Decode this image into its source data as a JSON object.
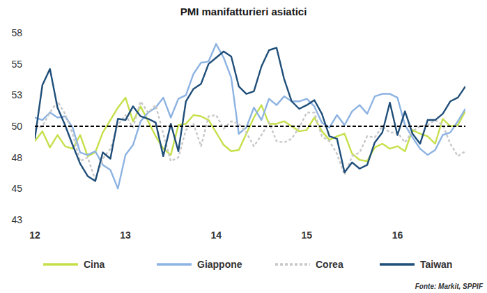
{
  "chart_data": {
    "type": "line",
    "title": "PMI manifatturieri asiatici",
    "source": "Fonte: Markit, SPPIF",
    "categories": [
      "12",
      null,
      null,
      null,
      null,
      null,
      null,
      null,
      null,
      null,
      null,
      null,
      "13",
      null,
      null,
      null,
      null,
      null,
      null,
      null,
      null,
      null,
      null,
      null,
      "14",
      null,
      null,
      null,
      null,
      null,
      null,
      null,
      null,
      null,
      null,
      null,
      "15",
      null,
      null,
      null,
      null,
      null,
      null,
      null,
      null,
      null,
      null,
      null,
      "16",
      null,
      null,
      null,
      null,
      null,
      null,
      null,
      null,
      null
    ],
    "ylim": [
      42.5,
      57.5
    ],
    "yticks": [
      {
        "value": 42.5,
        "label": "43"
      },
      {
        "value": 45,
        "label": "45"
      },
      {
        "value": 47.5,
        "label": "48"
      },
      {
        "value": 50,
        "label": "50"
      },
      {
        "value": 52.5,
        "label": "53"
      },
      {
        "value": 55,
        "label": "55"
      },
      {
        "value": 57.5,
        "label": "58"
      }
    ],
    "reference_line": 50,
    "grid": false,
    "legend": "bottom",
    "series": [
      {
        "name": "Cina",
        "color": "#c5e04b",
        "line_style": "solid",
        "values": [
          48.8,
          49.6,
          48.3,
          49.3,
          48.4,
          48.2,
          49.3,
          47.6,
          47.9,
          49.5,
          50.5,
          51.5,
          52.3,
          50.4,
          51.6,
          50.4,
          49.2,
          48.2,
          47.7,
          50.1,
          50.2,
          50.9,
          50.8,
          50.5,
          49.5,
          48.5,
          48.0,
          48.1,
          49.4,
          50.7,
          51.7,
          50.2,
          50.2,
          50.4,
          50.0,
          49.6,
          49.7,
          50.7,
          49.6,
          48.9,
          49.2,
          49.4,
          47.8,
          47.3,
          47.2,
          48.3,
          48.6,
          48.2,
          48.4,
          48.0,
          49.7,
          49.4,
          49.2,
          48.6,
          50.6,
          50.0,
          50.1,
          51.2
        ]
      },
      {
        "name": "Giappone",
        "color": "#8db3e2",
        "line_style": "solid",
        "values": [
          50.7,
          50.5,
          51.1,
          50.7,
          50.8,
          49.9,
          47.9,
          47.7,
          48.0,
          46.9,
          46.5,
          45.0,
          47.7,
          48.5,
          50.4,
          51.1,
          51.5,
          52.3,
          50.7,
          52.2,
          52.5,
          54.2,
          55.1,
          55.2,
          56.6,
          55.5,
          53.9,
          49.4,
          49.9,
          51.5,
          50.5,
          52.2,
          51.7,
          52.4,
          52.0,
          52.0,
          52.2,
          51.6,
          50.3,
          49.9,
          50.9,
          50.1,
          51.2,
          51.7,
          51.0,
          52.4,
          52.6,
          52.6,
          52.3,
          50.1,
          49.1,
          48.2,
          47.7,
          48.1,
          49.3,
          49.5,
          50.4,
          51.4
        ]
      },
      {
        "name": "Corea",
        "color": "#c8c8c8",
        "line_style": "dashed",
        "values": [
          49.8,
          50.0,
          51.1,
          52.0,
          51.0,
          49.4,
          47.2,
          47.5,
          45.7,
          47.4,
          48.2,
          50.1,
          50.9,
          49.9,
          52.0,
          51.1,
          51.7,
          49.4,
          47.2,
          47.5,
          49.7,
          50.2,
          48.4,
          50.8,
          50.9,
          49.8,
          50.4,
          50.2,
          49.5,
          48.4,
          49.3,
          50.3,
          48.8,
          48.7,
          49.0,
          49.9,
          51.1,
          51.1,
          49.2,
          48.8,
          47.8,
          46.1,
          47.6,
          47.9,
          49.2,
          49.1,
          50.0,
          49.5,
          49.5,
          48.7,
          49.6,
          50.0,
          50.1,
          50.5,
          50.1,
          48.6,
          47.6,
          48.0
        ]
      },
      {
        "name": "Taiwan",
        "color": "#1f4e79",
        "line_style": "solid",
        "values": [
          49.0,
          53.3,
          54.6,
          51.5,
          50.1,
          48.5,
          47.0,
          46.0,
          45.6,
          47.9,
          47.4,
          50.6,
          50.5,
          51.6,
          50.8,
          50.6,
          50.3,
          47.6,
          50.2,
          48.0,
          52.0,
          53.0,
          53.4,
          55.0,
          55.5,
          56.0,
          55.6,
          53.2,
          52.6,
          52.8,
          54.8,
          56.1,
          56.3,
          53.8,
          52.0,
          51.4,
          51.7,
          52.1,
          51.0,
          49.2,
          49.0,
          46.3,
          47.1,
          46.6,
          46.9,
          48.7,
          49.5,
          51.9,
          49.3,
          51.2,
          49.4,
          48.6,
          50.5,
          50.5,
          51.0,
          52.0,
          52.3,
          53.2
        ]
      }
    ]
  }
}
